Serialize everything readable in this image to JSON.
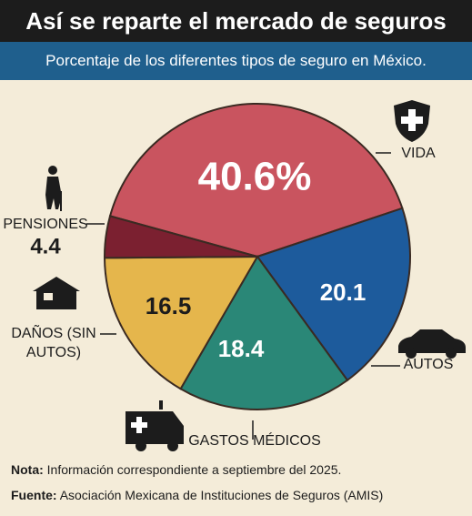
{
  "chart_data": {
    "type": "pie",
    "title": "Así se reparte el mercado de seguros",
    "subtitle": "Porcentaje de los diferentes tipos de seguro en México.",
    "categories": [
      "VIDA",
      "AUTOS",
      "GASTOS MÉDICOS",
      "DAÑOS (SIN AUTOS)",
      "PENSIONES"
    ],
    "values": [
      40.6,
      20.1,
      18.4,
      16.5,
      4.4
    ],
    "value_labels": [
      "40.6%",
      "20.1",
      "18.4",
      "16.5",
      "4.4"
    ],
    "colors": [
      "#c9545f",
      "#1d5b9c",
      "#2a8777",
      "#e5b64c",
      "#7b2030"
    ]
  },
  "note": {
    "label": "Nota:",
    "text": "Información correspondiente a septiembre del 2025."
  },
  "source": {
    "label": "Fuente:",
    "text": "Asociación Mexicana de Instituciones de Seguros (AMIS)"
  }
}
